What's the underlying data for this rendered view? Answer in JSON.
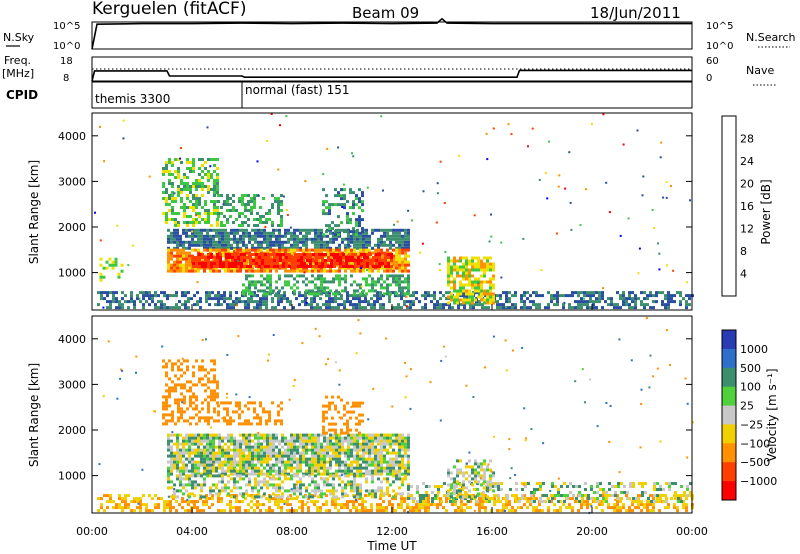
{
  "header": {
    "station": "Kerguelen (fitACF)",
    "beam": "Beam 09",
    "date": "18/Jun/2011"
  },
  "noise_panel": {
    "left_label": "N.Sky",
    "right_label": "N.Search",
    "left_ticks": [
      "10^5",
      "10^0"
    ],
    "right_ticks": [
      "10^5",
      "10^0"
    ]
  },
  "freq_panel": {
    "left_label_line1": "Freq.",
    "left_label_line2": "[MHz]",
    "right_label": "Nave",
    "left_ticks": [
      "18",
      "8"
    ],
    "right_ticks": [
      "60",
      "0"
    ]
  },
  "cpid_panel": {
    "label": "CPID",
    "modes": [
      {
        "name": "themis 3300",
        "start_hour": 0
      },
      {
        "name": "normal (fast) 151",
        "start_hour": 6
      }
    ]
  },
  "colors": {
    "power": [
      "#0000ff",
      "#2a4ea0",
      "#3c8f6e",
      "#3cc842",
      "#f0e000",
      "#ff9000",
      "#ff4000",
      "#ff0000"
    ],
    "velocity": [
      "#2a3cb4",
      "#2f6fcc",
      "#3c8f6e",
      "#4ed13c",
      "#c8c8c8",
      "#f0d000",
      "#ff9000",
      "#ff4000",
      "#ff0000"
    ],
    "ground_scatter": "#c8c8c8"
  },
  "chart_data": [
    {
      "type": "line",
      "name": "noise",
      "x": [
        0,
        0.2,
        2,
        4,
        6,
        8,
        10,
        12,
        13.8,
        14.0,
        14.2,
        16,
        18,
        20,
        24
      ],
      "y_log": [
        0,
        4.6,
        4.7,
        4.7,
        4.8,
        4.7,
        4.8,
        4.7,
        4.8,
        5.6,
        4.8,
        4.7,
        4.7,
        4.7,
        4.7
      ],
      "yrange": [
        0,
        5
      ]
    },
    {
      "type": "line",
      "name": "frequency",
      "x": [
        0,
        0.1,
        3,
        3.1,
        6,
        6.1,
        17,
        17.1,
        24
      ],
      "freq_mhz": [
        8,
        12.2,
        12.2,
        10.1,
        10.1,
        9.6,
        9.6,
        12.4,
        12.4
      ],
      "nave_x": [
        0,
        24
      ],
      "nave": [
        30,
        30
      ],
      "ylim": [
        8,
        18
      ]
    },
    {
      "type": "heatmap",
      "name": "power",
      "xlabel": "",
      "ylabel": "Slant Range [km]",
      "xlim": [
        0,
        24
      ],
      "ylim": [
        180,
        4500
      ],
      "yticks": [
        1000,
        2000,
        3000,
        4000
      ],
      "colorbar_label": "Power [dB]",
      "colorbar_ticks": [
        "4",
        "8",
        "12",
        "16",
        "20",
        "24",
        "28"
      ],
      "colorbar_range": [
        0,
        32
      ],
      "regions": [
        {
          "t0": 0.2,
          "t1": 24,
          "r0": 200,
          "r1": 580,
          "v": 8,
          "d": 0.55
        },
        {
          "t0": 3.0,
          "t1": 12.6,
          "r0": 1500,
          "r1": 1900,
          "v": 8,
          "d": 0.8
        },
        {
          "t0": 3.0,
          "t1": 12.6,
          "r0": 1000,
          "r1": 1500,
          "v": 22,
          "d": 0.9
        },
        {
          "t0": 4.0,
          "t1": 12.0,
          "r0": 1100,
          "r1": 1400,
          "v": 28,
          "d": 0.85
        },
        {
          "t0": 2.8,
          "t1": 5.0,
          "r0": 2000,
          "r1": 3500,
          "v": 14,
          "d": 0.5
        },
        {
          "t0": 5.0,
          "t1": 7.6,
          "r0": 2000,
          "r1": 2700,
          "v": 12,
          "d": 0.4
        },
        {
          "t0": 9.2,
          "t1": 10.8,
          "r0": 1800,
          "r1": 2800,
          "v": 10,
          "d": 0.4
        },
        {
          "t0": 6.0,
          "t1": 12.6,
          "r0": 500,
          "r1": 900,
          "v": 12,
          "d": 0.45
        },
        {
          "t0": 14.2,
          "t1": 16.0,
          "r0": 300,
          "r1": 1300,
          "v": 18,
          "d": 0.7
        },
        {
          "t0": 0.3,
          "t1": 1.2,
          "r0": 800,
          "r1": 1300,
          "v": 16,
          "d": 0.35
        }
      ]
    },
    {
      "type": "heatmap",
      "name": "velocity",
      "xlabel": "Time UT",
      "ylabel": "Slant Range [km]",
      "xlim": [
        0,
        24
      ],
      "ylim": [
        180,
        4500
      ],
      "yticks": [
        1000,
        2000,
        3000,
        4000
      ],
      "xticks": [
        "00:00",
        "04:00",
        "08:00",
        "12:00",
        "16:00",
        "20:00",
        "00:00"
      ],
      "colorbar_label": "Velocity [m s⁻¹]",
      "colorbar_ticks": [
        "1000",
        "500",
        "100",
        "25",
        "−25",
        "−100",
        "−500",
        "−1000"
      ],
      "regions": [
        {
          "t0": 0.2,
          "t1": 24,
          "r0": 200,
          "r1": 580,
          "v": -100,
          "d": 0.5
        },
        {
          "t0": 3.0,
          "t1": 12.6,
          "r0": 1000,
          "r1": 1900,
          "v": 0,
          "d": 0.85
        },
        {
          "t0": 3.0,
          "t1": 12.6,
          "r0": 500,
          "r1": 1000,
          "v": 0,
          "d": 0.5
        },
        {
          "t0": 2.8,
          "t1": 5.0,
          "r0": 2100,
          "r1": 3500,
          "v": -300,
          "d": 0.45
        },
        {
          "t0": 5.0,
          "t1": 7.6,
          "r0": 2100,
          "r1": 2600,
          "v": -200,
          "d": 0.4
        },
        {
          "t0": 9.2,
          "t1": 10.8,
          "r0": 1900,
          "r1": 2700,
          "v": -200,
          "d": 0.35
        },
        {
          "t0": 12.6,
          "t1": 24,
          "r0": 400,
          "r1": 800,
          "v": 0,
          "d": 0.35
        },
        {
          "t0": 14.2,
          "t1": 16.0,
          "r0": 500,
          "r1": 1300,
          "v": 0,
          "d": 0.5
        }
      ]
    }
  ]
}
